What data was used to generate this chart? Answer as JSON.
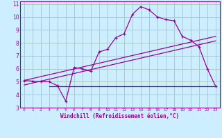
{
  "xlabel": "Windchill (Refroidissement éolien,°C)",
  "bg_color": "#cceeff",
  "line_color": "#990099",
  "grid_color": "#aaccbb",
  "xlim": [
    -0.5,
    23.5
  ],
  "ylim": [
    3,
    11.2
  ],
  "xticks": [
    0,
    1,
    2,
    3,
    4,
    5,
    6,
    7,
    8,
    9,
    10,
    11,
    12,
    13,
    14,
    15,
    16,
    17,
    18,
    19,
    20,
    21,
    22,
    23
  ],
  "yticks": [
    3,
    4,
    5,
    6,
    7,
    8,
    9,
    10,
    11
  ],
  "curve1_x": [
    0,
    1,
    2,
    3,
    4,
    5,
    6,
    7,
    8,
    9,
    10,
    11,
    12,
    13,
    14,
    15,
    16,
    17,
    18,
    19,
    20,
    21,
    22,
    23
  ],
  "curve1_y": [
    5.1,
    5.05,
    5.0,
    5.0,
    4.7,
    3.5,
    6.1,
    6.0,
    5.8,
    7.3,
    7.5,
    8.4,
    8.7,
    10.2,
    10.8,
    10.55,
    10.0,
    9.8,
    9.7,
    8.5,
    8.2,
    7.7,
    6.0,
    4.65
  ],
  "line2_x": [
    0,
    23
  ],
  "line2_y": [
    5.1,
    8.5
  ],
  "line3_x": [
    0,
    23
  ],
  "line3_y": [
    4.75,
    8.15
  ],
  "flat_line_x": [
    3,
    23
  ],
  "flat_line_y": [
    4.65,
    4.65
  ]
}
